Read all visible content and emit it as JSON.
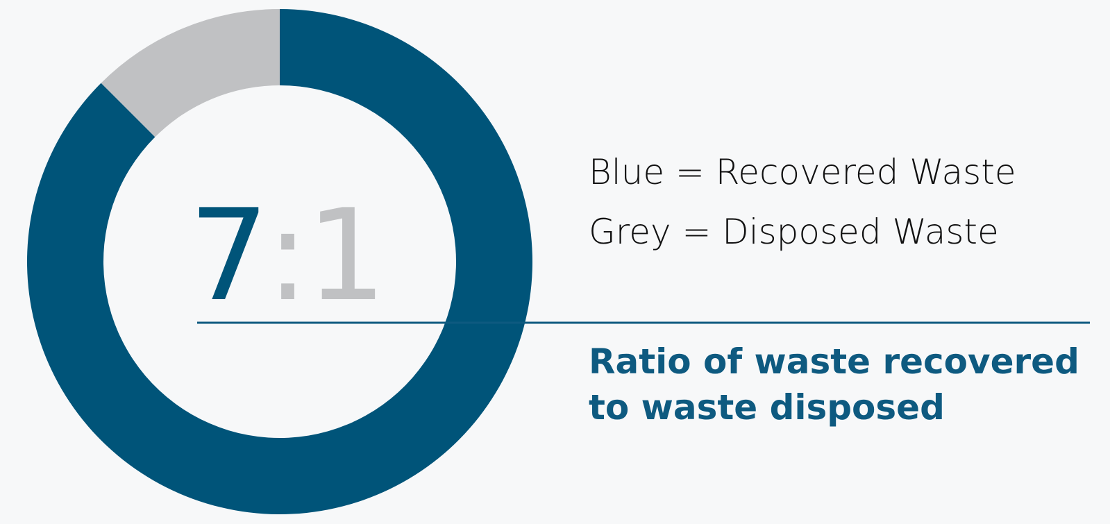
{
  "colors": {
    "recovered": "#005479",
    "disposed": "#c0c1c3",
    "divider": "#0e5a80",
    "background": "#f7f8f9"
  },
  "legend": {
    "blue": "Blue = Recovered Waste",
    "grey": "Grey = Disposed Waste"
  },
  "ratio": {
    "recovered": "7",
    "separator": ":",
    "disposed": "1"
  },
  "caption": "Ratio of waste recovered to waste disposed",
  "chart_data": {
    "type": "pie",
    "donut": true,
    "labels": [
      "Recovered Waste",
      "Disposed Waste"
    ],
    "values": [
      7,
      1
    ],
    "colors": [
      "#005479",
      "#c0c1c3"
    ],
    "start": "top",
    "direction": "clockwise"
  }
}
